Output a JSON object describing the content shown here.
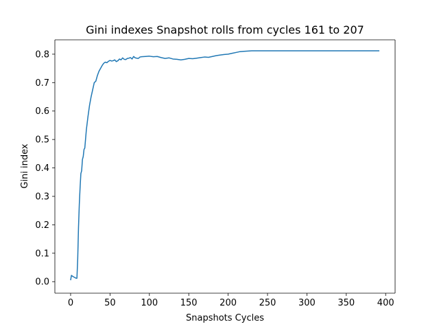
{
  "chart_data": {
    "type": "line",
    "title": "Gini indexes Snapshot rolls from cycles 161 to 207",
    "xlabel": "Snapshots Cycles",
    "ylabel": "Gini index",
    "xlim": [
      -20,
      412
    ],
    "ylim": [
      -0.0405,
      0.8505
    ],
    "xticks": [
      0,
      50,
      100,
      150,
      200,
      250,
      300,
      350,
      400
    ],
    "yticks": [
      0.0,
      0.1,
      0.2,
      0.3,
      0.4,
      0.5,
      0.6,
      0.7,
      0.8
    ],
    "xtick_labels": [
      "0",
      "50",
      "100",
      "150",
      "200",
      "250",
      "300",
      "350",
      "400"
    ],
    "ytick_labels": [
      "0.0",
      "0.1",
      "0.2",
      "0.3",
      "0.4",
      "0.5",
      "0.6",
      "0.7",
      "0.8"
    ],
    "grid": false,
    "legend": "none",
    "series_color": "#1f77b4",
    "series": [
      {
        "x": [
          0,
          1,
          3,
          5,
          7,
          8,
          9,
          10,
          11,
          12,
          13,
          14,
          15,
          16,
          17,
          18,
          20,
          22,
          24,
          26,
          28,
          30,
          32,
          34,
          36,
          38,
          40,
          42,
          44,
          46,
          48,
          50,
          52,
          54,
          56,
          58,
          60,
          62,
          64,
          66,
          68,
          70,
          72,
          74,
          76,
          78,
          80,
          82,
          84,
          86,
          88,
          90,
          95,
          100,
          105,
          110,
          115,
          120,
          125,
          130,
          135,
          140,
          145,
          150,
          155,
          160,
          165,
          170,
          175,
          180,
          185,
          190,
          195,
          200,
          205,
          210,
          215,
          220,
          230,
          240,
          250,
          300,
          350,
          392
        ],
        "y": [
          0.005,
          0.022,
          0.018,
          0.015,
          0.012,
          0.012,
          0.08,
          0.19,
          0.27,
          0.33,
          0.38,
          0.39,
          0.43,
          0.44,
          0.465,
          0.47,
          0.535,
          0.58,
          0.62,
          0.65,
          0.675,
          0.7,
          0.705,
          0.725,
          0.74,
          0.75,
          0.76,
          0.768,
          0.772,
          0.77,
          0.775,
          0.778,
          0.776,
          0.777,
          0.78,
          0.774,
          0.777,
          0.783,
          0.78,
          0.787,
          0.782,
          0.781,
          0.785,
          0.786,
          0.788,
          0.783,
          0.792,
          0.787,
          0.786,
          0.785,
          0.79,
          0.791,
          0.792,
          0.793,
          0.791,
          0.792,
          0.788,
          0.785,
          0.787,
          0.783,
          0.782,
          0.78,
          0.782,
          0.785,
          0.784,
          0.786,
          0.788,
          0.79,
          0.789,
          0.792,
          0.795,
          0.797,
          0.799,
          0.8,
          0.803,
          0.806,
          0.809,
          0.81,
          0.812,
          0.812,
          0.812,
          0.812,
          0.812,
          0.812
        ]
      }
    ]
  }
}
